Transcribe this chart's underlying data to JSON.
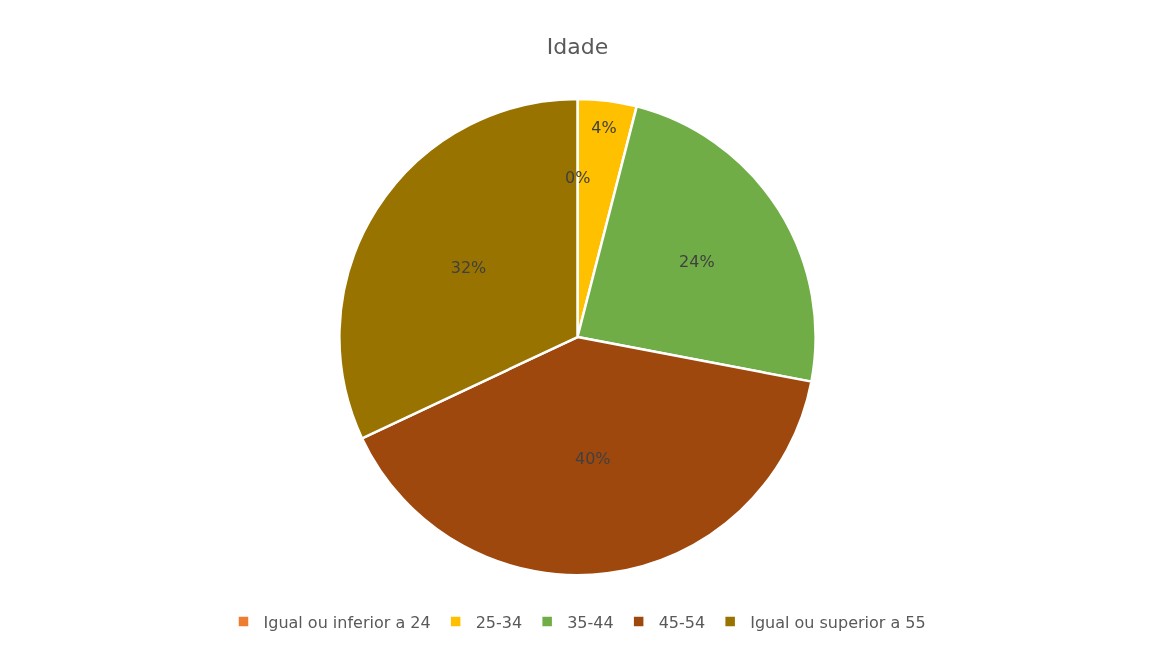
{
  "chart_data": {
    "type": "pie",
    "title": "Idade",
    "categories": [
      "Igual ou inferior a 24",
      "25-34",
      "35-44",
      "45-54",
      "Igual ou superior a 55"
    ],
    "values": [
      0,
      4,
      24,
      40,
      32
    ],
    "value_labels": [
      "0%",
      "4%",
      "24%",
      "40%",
      "32%"
    ],
    "colors": [
      "#ed7d31",
      "#ffc000",
      "#70ad47",
      "#9e480e",
      "#997300"
    ],
    "legend": "bottom"
  }
}
